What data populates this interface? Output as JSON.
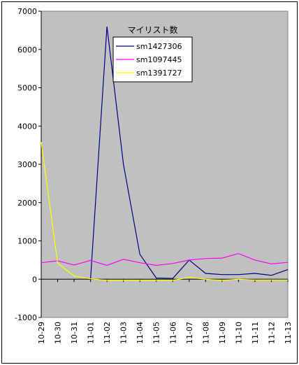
{
  "chart_data": {
    "type": "line",
    "legend_title": "マイリスト数",
    "legend_placement": "top-center",
    "categories": [
      "10-29",
      "10-30",
      "10-31",
      "11-01",
      "11-02",
      "11-03",
      "11-04",
      "11-05",
      "11-06",
      "11-07",
      "11-08",
      "11-09",
      "11-10",
      "11-11",
      "11-12",
      "11-13"
    ],
    "ylim": [
      -1000,
      7000
    ],
    "yticks": [
      -1000,
      0,
      1000,
      2000,
      3000,
      4000,
      5000,
      6000,
      7000
    ],
    "grid": false,
    "plot_background": "#C0C0C0",
    "series": [
      {
        "name": "sm1427306",
        "color": "#000080",
        "values": [
          null,
          null,
          null,
          0,
          6600,
          3000,
          650,
          30,
          20,
          500,
          150,
          120,
          120,
          150,
          100,
          250
        ]
      },
      {
        "name": "sm1097445",
        "color": "#FF00FF",
        "values": [
          430,
          480,
          370,
          490,
          360,
          520,
          430,
          360,
          410,
          500,
          540,
          550,
          670,
          500,
          400,
          440
        ]
      },
      {
        "name": "sm1391727",
        "color": "#FFFF00",
        "values": [
          3580,
          420,
          80,
          10,
          -30,
          -30,
          -30,
          -30,
          -30,
          50,
          0,
          -30,
          0,
          -20,
          -20,
          -20
        ]
      }
    ]
  }
}
